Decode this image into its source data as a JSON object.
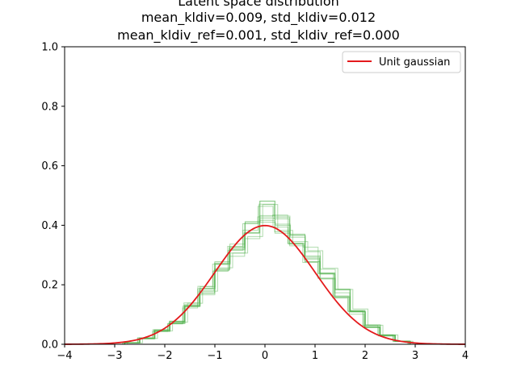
{
  "chart_data": {
    "type": "line",
    "title_lines": [
      "Latent space distribution",
      "mean_kldiv=0.009, std_kldiv=0.012",
      "mean_kldiv_ref=0.001, std_kldiv_ref=0.000"
    ],
    "xlabel": "",
    "ylabel": "",
    "xlim": [
      -4,
      4
    ],
    "ylim": [
      0,
      1.0
    ],
    "x_ticks": [
      -4,
      -3,
      -2,
      -1,
      0,
      1,
      2,
      3,
      4
    ],
    "x_tick_labels": [
      "−4",
      "−3",
      "−2",
      "−1",
      "0",
      "1",
      "2",
      "3",
      "4"
    ],
    "y_ticks": [
      0,
      0.2,
      0.4,
      0.6,
      0.8,
      1.0
    ],
    "y_tick_labels": [
      "0.0",
      "0.2",
      "0.4",
      "0.6",
      "0.8",
      "1.0"
    ],
    "grid": false,
    "legend": {
      "position": "top-right",
      "entries": [
        "Unit gaussian"
      ]
    },
    "series": [
      {
        "name": "Unit gaussian",
        "kind": "line",
        "color": "#e41a1c",
        "x": [
          -4,
          -3.5,
          -3,
          -2.5,
          -2,
          -1.5,
          -1,
          -0.5,
          0,
          0.5,
          1,
          1.5,
          2,
          2.5,
          3,
          3.5,
          4
        ],
        "y": [
          0.0001,
          0.0009,
          0.0044,
          0.0175,
          0.054,
          0.1295,
          0.242,
          0.352,
          0.399,
          0.352,
          0.242,
          0.1295,
          0.054,
          0.0175,
          0.0044,
          0.0009,
          0.0001
        ]
      },
      {
        "kind": "step-histogram",
        "color": "#4daf4a",
        "opacity": 0.45,
        "note_count": 10,
        "x": [
          -2.8,
          -2.5,
          -2.2,
          -1.9,
          -1.6,
          -1.3,
          -1.0,
          -0.7,
          -0.4,
          -0.1,
          0.2,
          0.5,
          0.8,
          1.1,
          1.4,
          1.7,
          2.0,
          2.3,
          2.6,
          2.9
        ],
        "y": [
          0.005,
          0.02,
          0.045,
          0.075,
          0.13,
          0.18,
          0.26,
          0.32,
          0.38,
          0.45,
          0.41,
          0.36,
          0.3,
          0.24,
          0.17,
          0.11,
          0.06,
          0.03,
          0.01,
          0.0
        ]
      }
    ]
  }
}
